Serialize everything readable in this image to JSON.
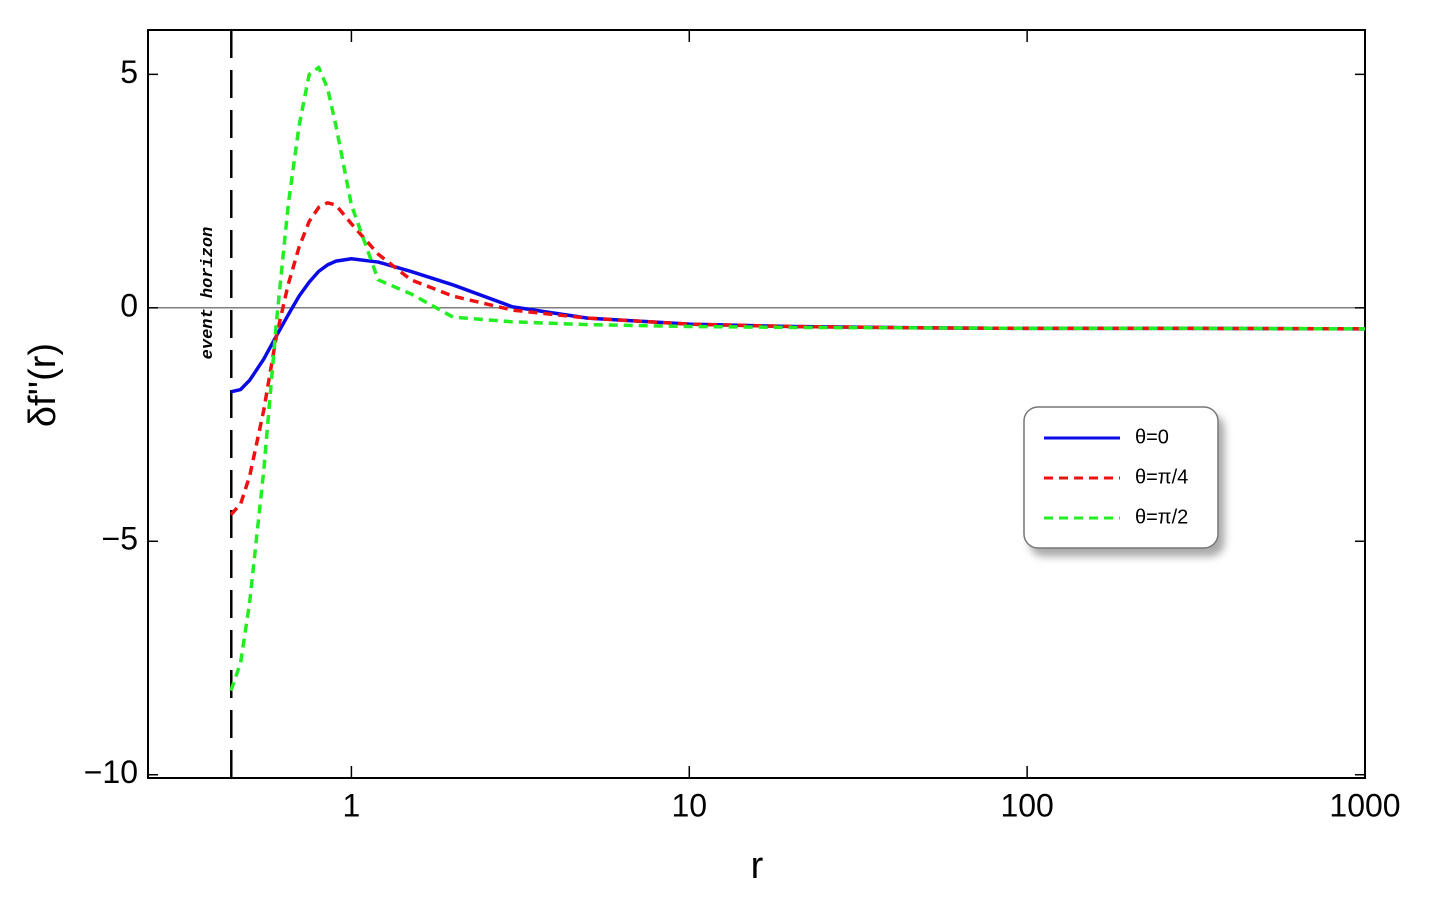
{
  "chart_data": {
    "type": "line",
    "x_label": "r",
    "y_label": "δf''(r)",
    "annotation": "event horizon",
    "horizon": 0.441,
    "xscale": "log",
    "xlim": [
      0.25,
      1000
    ],
    "xticks": [
      1,
      10,
      100,
      1000
    ],
    "ylim": [
      -10.07,
      5.95
    ],
    "yticks": [
      {
        "value": -10,
        "label": "−10"
      },
      {
        "value": -5,
        "label": "−5"
      },
      0,
      5
    ],
    "zero_line": true,
    "legend": "right",
    "x": [
      0.44,
      0.47,
      0.5,
      0.55,
      0.6,
      0.65,
      0.7,
      0.75,
      0.8,
      0.85,
      0.9,
      1,
      1.2,
      1.5,
      2,
      3,
      5,
      10,
      20,
      50,
      100,
      300,
      1000
    ],
    "series": [
      {
        "name": "θ=0",
        "color": "#0a0ae6",
        "style": "solid",
        "values": [
          -1.8,
          -1.75,
          -1.55,
          -1.1,
          -0.6,
          -0.15,
          0.25,
          0.55,
          0.78,
          0.92,
          1.0,
          1.05,
          0.98,
          0.78,
          0.49,
          0.02,
          -0.22,
          -0.35,
          -0.4,
          -0.43,
          -0.44,
          -0.44,
          -0.45
        ]
      },
      {
        "name": "θ=π/4",
        "color": "#ee1111",
        "style": "dashed",
        "values": [
          -4.43,
          -4.2,
          -3.6,
          -2.2,
          -0.6,
          0.5,
          1.3,
          1.85,
          2.15,
          2.25,
          2.2,
          1.8,
          1.15,
          0.6,
          0.25,
          -0.05,
          -0.22,
          -0.35,
          -0.4,
          -0.43,
          -0.44,
          -0.44,
          -0.45
        ]
      },
      {
        "name": "θ=π/2",
        "color": "#22ee22",
        "style": "dashed",
        "values": [
          -8.2,
          -7.6,
          -6.3,
          -3.5,
          -0.3,
          2.2,
          3.9,
          5.0,
          5.15,
          4.7,
          3.9,
          2.2,
          0.6,
          0.3,
          -0.2,
          -0.3,
          -0.36,
          -0.4,
          -0.42,
          -0.43,
          -0.44,
          -0.44,
          -0.45
        ]
      }
    ]
  }
}
